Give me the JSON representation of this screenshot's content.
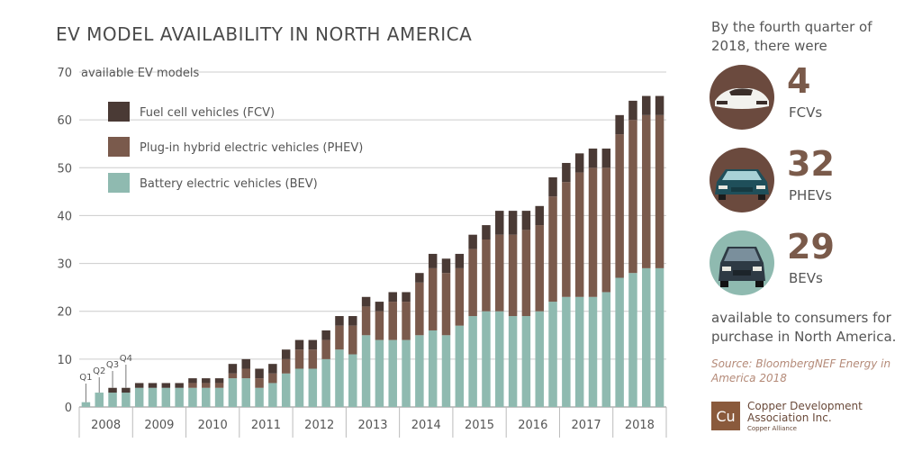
{
  "title": "EV MODEL AVAILABILITY IN NORTH AMERICA",
  "colors": {
    "FCV": "#4a3a35",
    "PHEV": "#7a5a4c",
    "BEV": "#8fbab0",
    "accent": "#7a5a4a"
  },
  "chart_data": {
    "type": "bar",
    "stacked": true,
    "ylabel": "available EV models",
    "ylim": [
      0,
      70
    ],
    "yticks": [
      0,
      10,
      20,
      30,
      40,
      50,
      60,
      70
    ],
    "years": [
      "2008",
      "2009",
      "2010",
      "2011",
      "2012",
      "2013",
      "2014",
      "2015",
      "2016",
      "2017",
      "2018"
    ],
    "quarter_labels": [
      "Q1",
      "Q2",
      "Q3",
      "Q4"
    ],
    "categories": [
      "2008 Q1",
      "2008 Q2",
      "2008 Q3",
      "2008 Q4",
      "2009 Q1",
      "2009 Q2",
      "2009 Q3",
      "2009 Q4",
      "2010 Q1",
      "2010 Q2",
      "2010 Q3",
      "2010 Q4",
      "2011 Q1",
      "2011 Q2",
      "2011 Q3",
      "2011 Q4",
      "2012 Q1",
      "2012 Q2",
      "2012 Q3",
      "2012 Q4",
      "2013 Q1",
      "2013 Q2",
      "2013 Q3",
      "2013 Q4",
      "2014 Q1",
      "2014 Q2",
      "2014 Q3",
      "2014 Q4",
      "2015 Q1",
      "2015 Q2",
      "2015 Q3",
      "2015 Q4",
      "2016 Q1",
      "2016 Q2",
      "2016 Q3",
      "2016 Q4",
      "2017 Q1",
      "2017 Q2",
      "2017 Q3",
      "2017 Q4",
      "2018 Q1",
      "2018 Q2",
      "2018 Q3",
      "2018 Q4"
    ],
    "series": [
      {
        "name": "Battery electric vehicles (BEV)",
        "key": "BEV",
        "values": [
          1,
          3,
          3,
          3,
          4,
          4,
          4,
          4,
          4,
          4,
          4,
          6,
          6,
          4,
          5,
          7,
          8,
          8,
          10,
          12,
          11,
          15,
          14,
          14,
          14,
          15,
          16,
          15,
          17,
          19,
          20,
          20,
          19,
          19,
          20,
          22,
          23,
          23,
          23,
          24,
          27,
          28,
          29,
          29
        ]
      },
      {
        "name": "Plug-in hybrid electric vehicles (PHEV)",
        "key": "PHEV",
        "values": [
          0,
          0,
          0,
          0,
          0,
          0,
          0,
          0,
          1,
          1,
          1,
          1,
          2,
          2,
          2,
          3,
          4,
          4,
          4,
          5,
          6,
          6,
          6,
          8,
          8,
          11,
          13,
          13,
          12,
          14,
          15,
          16,
          17,
          18,
          18,
          22,
          24,
          26,
          27,
          26,
          30,
          32,
          32,
          32
        ]
      },
      {
        "name": "Fuel cell vehicles (FCV)",
        "key": "FCV",
        "values": [
          0,
          0,
          1,
          1,
          1,
          1,
          1,
          1,
          1,
          1,
          1,
          2,
          2,
          2,
          2,
          2,
          2,
          2,
          2,
          2,
          2,
          2,
          2,
          2,
          2,
          2,
          3,
          3,
          3,
          3,
          3,
          5,
          5,
          4,
          4,
          4,
          4,
          4,
          4,
          4,
          4,
          4,
          4,
          4
        ]
      }
    ],
    "legend_position": "top-left"
  },
  "side": {
    "intro": "By the fourth quarter of 2018, there were",
    "stats": [
      {
        "number": "4",
        "label": "FCVs",
        "icon": "fcv-car-icon"
      },
      {
        "number": "32",
        "label": "PHEVs",
        "icon": "phev-car-icon"
      },
      {
        "number": "29",
        "label": "BEVs",
        "icon": "bev-car-icon"
      }
    ],
    "outro": "available to consumers for purchase in North America.",
    "source": "Source: BloombergNEF Energy in America 2018"
  },
  "logo": {
    "mark": "Cu",
    "name": "Copper Development Association Inc.",
    "sub": "Copper Alliance"
  }
}
